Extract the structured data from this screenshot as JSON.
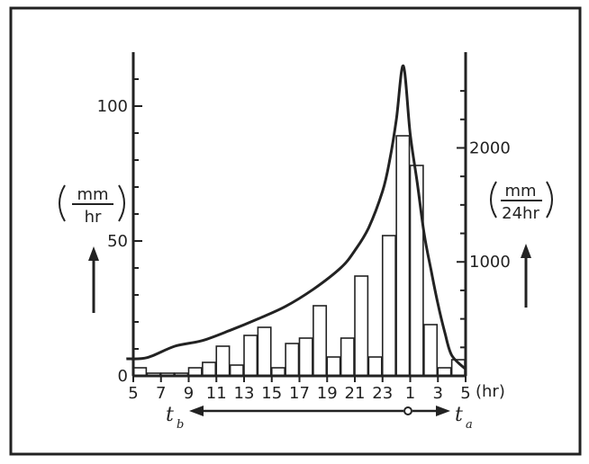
{
  "chart_data": {
    "type": "bar",
    "bar_categories_hr": [
      5,
      6,
      7,
      8,
      9,
      10,
      11,
      12,
      13,
      14,
      15,
      16,
      17,
      18,
      19,
      20,
      21,
      22,
      23,
      24,
      1,
      2,
      3,
      4
    ],
    "bar_values": [
      3,
      1,
      1,
      1,
      3,
      5,
      11,
      4,
      15,
      18,
      3,
      12,
      14,
      26,
      7,
      14,
      37,
      7,
      52,
      89,
      78,
      19,
      3,
      6
    ],
    "curve": {
      "type": "line",
      "x_hr": [
        "4.5",
        "6",
        "8",
        "10",
        "12",
        "14",
        "16",
        "18",
        "20",
        "21",
        "22",
        "23",
        "23.5",
        "24",
        "24.5",
        "25",
        "25.5",
        "26",
        "26.5",
        "27",
        "27.5",
        "28",
        "29"
      ],
      "y_mm_per_24hr": [
        150,
        160,
        260,
        310,
        400,
        500,
        610,
        760,
        950,
        1100,
        1300,
        1620,
        1880,
        2250,
        2720,
        2120,
        1700,
        1250,
        930,
        630,
        380,
        180,
        60
      ]
    },
    "x_axis": {
      "tick_labels": [
        "5",
        "7",
        "9",
        "11",
        "13",
        "15",
        "17",
        "19",
        "21",
        "23",
        "1",
        "3",
        "5"
      ],
      "unit": "(hr)",
      "range_hr": [
        5,
        29
      ],
      "tb_label": "t",
      "tb_sub": "b",
      "ta_label": "t",
      "ta_sub": "a"
    },
    "y_left": {
      "tick_labels": [
        "0",
        "50",
        "100"
      ],
      "ticks": [
        0,
        50,
        100
      ],
      "range": [
        0,
        120
      ],
      "unit_numerator": "mm",
      "unit_denominator": "hr"
    },
    "y_right": {
      "tick_labels": [
        "1000",
        "2000"
      ],
      "ticks": [
        1000,
        2000
      ],
      "range": [
        0,
        2840
      ],
      "unit_numerator": "mm",
      "unit_denominator": "24hr"
    }
  }
}
